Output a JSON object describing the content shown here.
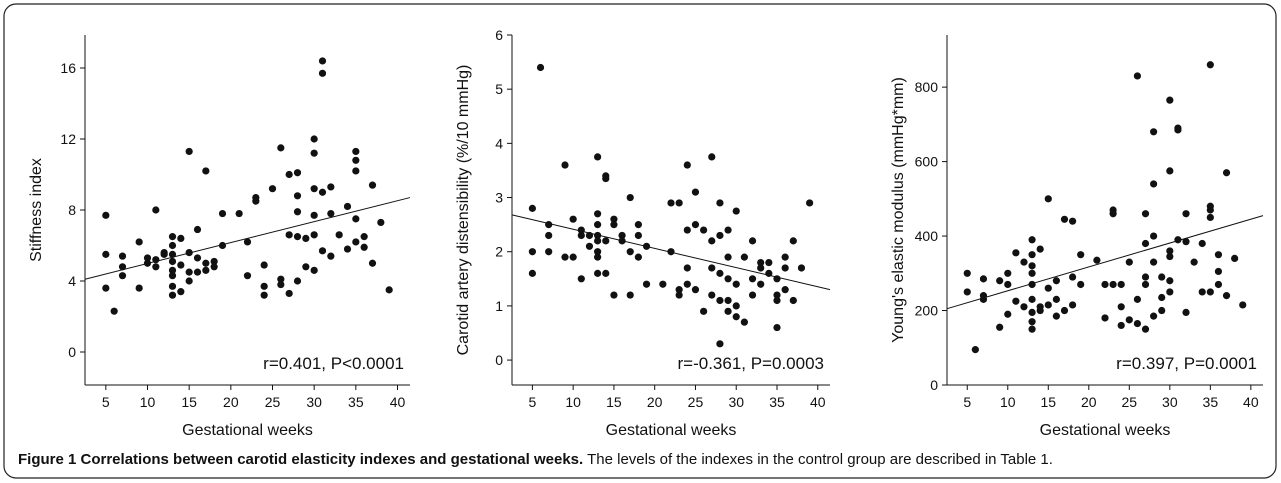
{
  "chart_data": [
    {
      "type": "scatter",
      "y_label": "Stiffness index",
      "x_label": "Gestational weeks",
      "annotation": "r=0.401, P<0.0001",
      "xlim": [
        2.5,
        41.5
      ],
      "xticks": [
        5,
        10,
        15,
        20,
        25,
        30,
        35,
        40
      ],
      "ylim": [
        -1.86,
        17.86
      ],
      "yticks": [
        0,
        4,
        8,
        12,
        16
      ],
      "color": "#111111",
      "x": [
        5,
        5,
        5,
        6,
        7,
        7,
        7,
        9,
        9,
        10,
        10,
        11,
        11,
        11,
        12,
        12,
        13,
        13,
        13,
        13,
        13,
        13,
        13,
        13,
        14,
        14,
        14,
        15,
        15,
        15,
        15,
        16,
        16,
        16,
        17,
        17,
        17,
        18,
        18,
        19,
        19,
        21,
        22,
        22,
        23,
        23,
        24,
        24,
        24,
        25,
        26,
        26,
        26,
        27,
        27,
        27,
        28,
        28,
        28,
        28,
        28,
        29,
        29,
        30,
        30,
        30,
        30,
        30,
        30,
        31,
        31,
        31,
        31,
        32,
        32,
        32,
        33,
        34,
        34,
        35,
        35,
        35,
        35,
        35,
        36,
        36,
        37,
        37,
        38,
        39
      ],
      "values": [
        7.7,
        5.5,
        3.6,
        2.3,
        5.4,
        4.8,
        4.3,
        6.2,
        3.6,
        5.3,
        5.0,
        8.0,
        5.2,
        4.8,
        5.5,
        5.6,
        6.5,
        6.0,
        5.1,
        4.6,
        4.3,
        3.7,
        3.2,
        5.5,
        6.4,
        4.9,
        3.4,
        11.3,
        5.6,
        4.5,
        4.0,
        6.9,
        5.3,
        4.5,
        10.2,
        4.6,
        5.0,
        5.1,
        4.8,
        6.0,
        7.8,
        7.8,
        6.2,
        4.3,
        8.5,
        8.7,
        4.9,
        3.2,
        3.7,
        9.2,
        11.5,
        4.1,
        3.8,
        10.0,
        6.6,
        3.3,
        10.1,
        8.8,
        7.9,
        6.5,
        4.0,
        6.4,
        4.8,
        12.0,
        11.2,
        9.2,
        7.7,
        6.6,
        4.6,
        16.4,
        15.7,
        9.0,
        5.7,
        9.3,
        7.8,
        5.4,
        6.6,
        8.2,
        5.8,
        11.3,
        10.8,
        10.2,
        7.5,
        6.2,
        6.5,
        5.9,
        9.4,
        5.0,
        7.3,
        3.5
      ],
      "fit_line": {
        "x": [
          2.5,
          41.5
        ],
        "y": [
          4.1,
          8.7
        ]
      }
    },
    {
      "type": "scatter",
      "y_label": "Carotid artery distensibility (%/10 mmHg)",
      "x_label": "Gestational weeks",
      "annotation": "r=-0.361, P=0.0003",
      "xlim": [
        2.5,
        41.5
      ],
      "xticks": [
        5,
        10,
        15,
        20,
        25,
        30,
        35,
        40
      ],
      "ylim": [
        -0.46,
        6
      ],
      "yticks": [
        0,
        1,
        2,
        3,
        4,
        5,
        6
      ],
      "color": "#111111",
      "x": [
        5,
        5,
        5,
        6,
        7,
        7,
        7,
        9,
        9,
        10,
        10,
        11,
        11,
        11,
        12,
        12,
        13,
        13,
        13,
        13,
        13,
        13,
        13,
        13,
        14,
        14,
        14,
        14,
        15,
        15,
        15,
        16,
        16,
        17,
        17,
        17,
        18,
        18,
        18,
        19,
        19,
        21,
        22,
        22,
        23,
        23,
        23,
        24,
        24,
        24,
        24,
        25,
        25,
        25,
        26,
        26,
        27,
        27,
        27,
        27,
        28,
        28,
        28,
        28,
        28,
        29,
        29,
        29,
        29,
        29,
        30,
        30,
        30,
        30,
        31,
        31,
        32,
        32,
        32,
        33,
        33,
        33,
        34,
        34,
        35,
        35,
        35,
        35,
        36,
        36,
        36,
        37,
        37,
        38,
        39
      ],
      "values": [
        2.8,
        2.0,
        1.6,
        5.4,
        2.5,
        2.3,
        2.0,
        3.6,
        1.9,
        2.6,
        1.9,
        2.4,
        1.5,
        2.3,
        2.3,
        2.1,
        3.75,
        2.7,
        2.5,
        2.3,
        2.2,
        1.9,
        1.6,
        2.0,
        3.4,
        3.35,
        2.2,
        1.6,
        2.6,
        2.5,
        1.2,
        2.3,
        2.2,
        3.0,
        2.0,
        1.2,
        2.5,
        2.3,
        1.9,
        2.1,
        1.4,
        1.4,
        2.9,
        2.0,
        1.3,
        1.2,
        2.9,
        3.6,
        2.4,
        1.7,
        1.4,
        3.1,
        2.5,
        1.3,
        0.9,
        2.4,
        3.75,
        2.2,
        1.2,
        1.7,
        2.9,
        2.3,
        1.6,
        1.1,
        0.3,
        1.9,
        1.1,
        1.5,
        0.9,
        2.4,
        2.75,
        1.4,
        1.0,
        0.8,
        1.9,
        0.7,
        2.2,
        1.5,
        1.2,
        1.8,
        1.7,
        1.4,
        1.8,
        1.6,
        1.2,
        1.1,
        0.6,
        1.5,
        1.7,
        1.3,
        1.9,
        2.2,
        1.1,
        1.7,
        2.9
      ],
      "fit_line": {
        "x": [
          2.5,
          41.5
        ],
        "y": [
          2.68,
          1.3
        ]
      }
    },
    {
      "type": "scatter",
      "y_label": "Young's elastic modulus (mmHg*mm)",
      "x_label": "Gestational weeks",
      "annotation": "r=0.397, P=0.0001",
      "xlim": [
        2.5,
        41.5
      ],
      "xticks": [
        5,
        10,
        15,
        20,
        25,
        30,
        35,
        40
      ],
      "ylim": [
        0,
        940
      ],
      "yticks": [
        0,
        200,
        400,
        600,
        800
      ],
      "color": "#111111",
      "x": [
        5,
        5,
        6,
        7,
        7,
        7,
        9,
        9,
        10,
        10,
        10,
        11,
        11,
        12,
        12,
        13,
        13,
        13,
        13,
        13,
        13,
        13,
        13,
        13,
        14,
        14,
        14,
        15,
        15,
        15,
        16,
        16,
        16,
        17,
        17,
        18,
        18,
        18,
        19,
        19,
        21,
        22,
        22,
        23,
        23,
        23,
        24,
        24,
        24,
        25,
        25,
        26,
        26,
        26,
        27,
        27,
        27,
        27,
        27,
        28,
        28,
        28,
        28,
        28,
        29,
        29,
        29,
        30,
        30,
        30,
        30,
        30,
        30,
        31,
        31,
        31,
        32,
        32,
        32,
        33,
        34,
        34,
        35,
        35,
        35,
        35,
        35,
        36,
        36,
        36,
        37,
        37,
        38,
        39
      ],
      "values": [
        300,
        250,
        95,
        285,
        230,
        240,
        280,
        155,
        300,
        270,
        190,
        355,
        225,
        330,
        210,
        390,
        350,
        320,
        300,
        270,
        230,
        195,
        170,
        150,
        365,
        210,
        200,
        500,
        260,
        215,
        280,
        230,
        185,
        445,
        200,
        440,
        215,
        290,
        350,
        270,
        335,
        270,
        180,
        470,
        460,
        270,
        270,
        210,
        160,
        330,
        175,
        830,
        230,
        165,
        460,
        380,
        290,
        270,
        150,
        680,
        540,
        400,
        330,
        185,
        290,
        235,
        200,
        765,
        575,
        360,
        345,
        280,
        250,
        690,
        685,
        390,
        460,
        385,
        195,
        330,
        380,
        250,
        860,
        480,
        470,
        450,
        250,
        350,
        305,
        270,
        570,
        240,
        340,
        215
      ],
      "fit_line": {
        "x": [
          2.5,
          41.5
        ],
        "y": [
          205,
          455
        ]
      }
    }
  ],
  "caption": {
    "title": "Figure 1 Correlations between carotid elasticity indexes and gestational weeks.",
    "text": "The levels of the indexes in the control group are described in Table 1."
  }
}
